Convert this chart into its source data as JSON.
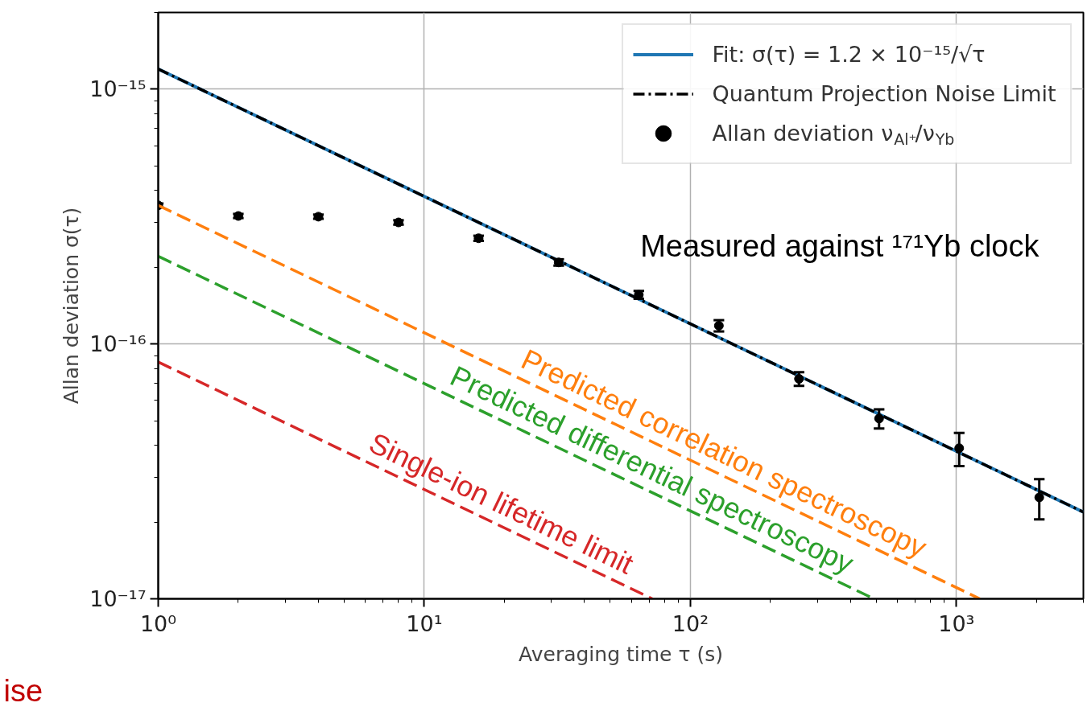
{
  "chart_data": {
    "type": "line",
    "xlabel": "Averaging time τ (s)",
    "ylabel": "Allan deviation σ(τ)",
    "log": "xy",
    "grid": true,
    "legend": "top right",
    "xlim": [
      1,
      3000
    ],
    "ylim": [
      1e-17,
      2e-15
    ],
    "xticks": [
      {
        "value": 1,
        "label": "10⁰"
      },
      {
        "value": 10,
        "label": "10¹"
      },
      {
        "value": 100,
        "label": "10²"
      },
      {
        "value": 1000,
        "label": "10³"
      }
    ],
    "yticks": [
      {
        "value": 1e-17,
        "label": "10⁻¹⁷"
      },
      {
        "value": 1e-16,
        "label": "10⁻¹⁶"
      },
      {
        "value": 1e-15,
        "label": "10⁻¹⁵"
      }
    ],
    "series": [
      {
        "name": "Fit: σ(τ) = 1.2 × 10⁻¹⁵/√τ",
        "type": "line",
        "color": "#1f77b4",
        "line_style": "solid",
        "x": [
          1,
          3000
        ],
        "values": [
          1.2e-15,
          2.19e-17
        ]
      },
      {
        "name": "Quantum Projection Noise Limit",
        "type": "line",
        "color": "#000000",
        "line_style": "dashdot",
        "x": [
          1,
          3000
        ],
        "values": [
          1.2e-15,
          2.19e-17
        ]
      },
      {
        "name": "Allan deviation ν$_{Al⁺}$/ν$_{Yb}$",
        "type": "scatter",
        "marker": "circle",
        "color": "#000000",
        "x": [
          1,
          2,
          4,
          8,
          16,
          32,
          64,
          128,
          256,
          512,
          1024,
          2048
        ],
        "values": [
          3.5e-16,
          3.18e-16,
          3.16e-16,
          3e-16,
          2.6e-16,
          2.09e-16,
          1.56e-16,
          1.18e-16,
          7.3e-17,
          5.1e-17,
          3.9e-17,
          2.5e-17
        ],
        "errors": [
          6e-18,
          6e-18,
          6e-18,
          6e-18,
          6e-18,
          6e-18,
          5.5e-18,
          6e-18,
          4.5e-18,
          4.4e-18,
          5.8e-18,
          4.5e-18
        ]
      },
      {
        "name": "Predicted correlation spectroscopy",
        "type": "line",
        "color": "#ff7f0e",
        "line_style": "dashed",
        "x": [
          1,
          1225
        ],
        "values": [
          3.5e-16,
          1e-17
        ]
      },
      {
        "name": "Predicted differential spectroscopy",
        "type": "line",
        "color": "#2ca02c",
        "line_style": "dashed",
        "x": [
          1,
          490
        ],
        "values": [
          2.21e-16,
          1e-17
        ]
      },
      {
        "name": "Single-ion lifetime limit",
        "type": "line",
        "color": "#d62728",
        "line_style": "dashed",
        "x": [
          1,
          72
        ],
        "values": [
          8.5e-17,
          1e-17
        ]
      }
    ],
    "annotations": [
      "Measured against ¹⁷¹Yb clock",
      "ise"
    ]
  }
}
